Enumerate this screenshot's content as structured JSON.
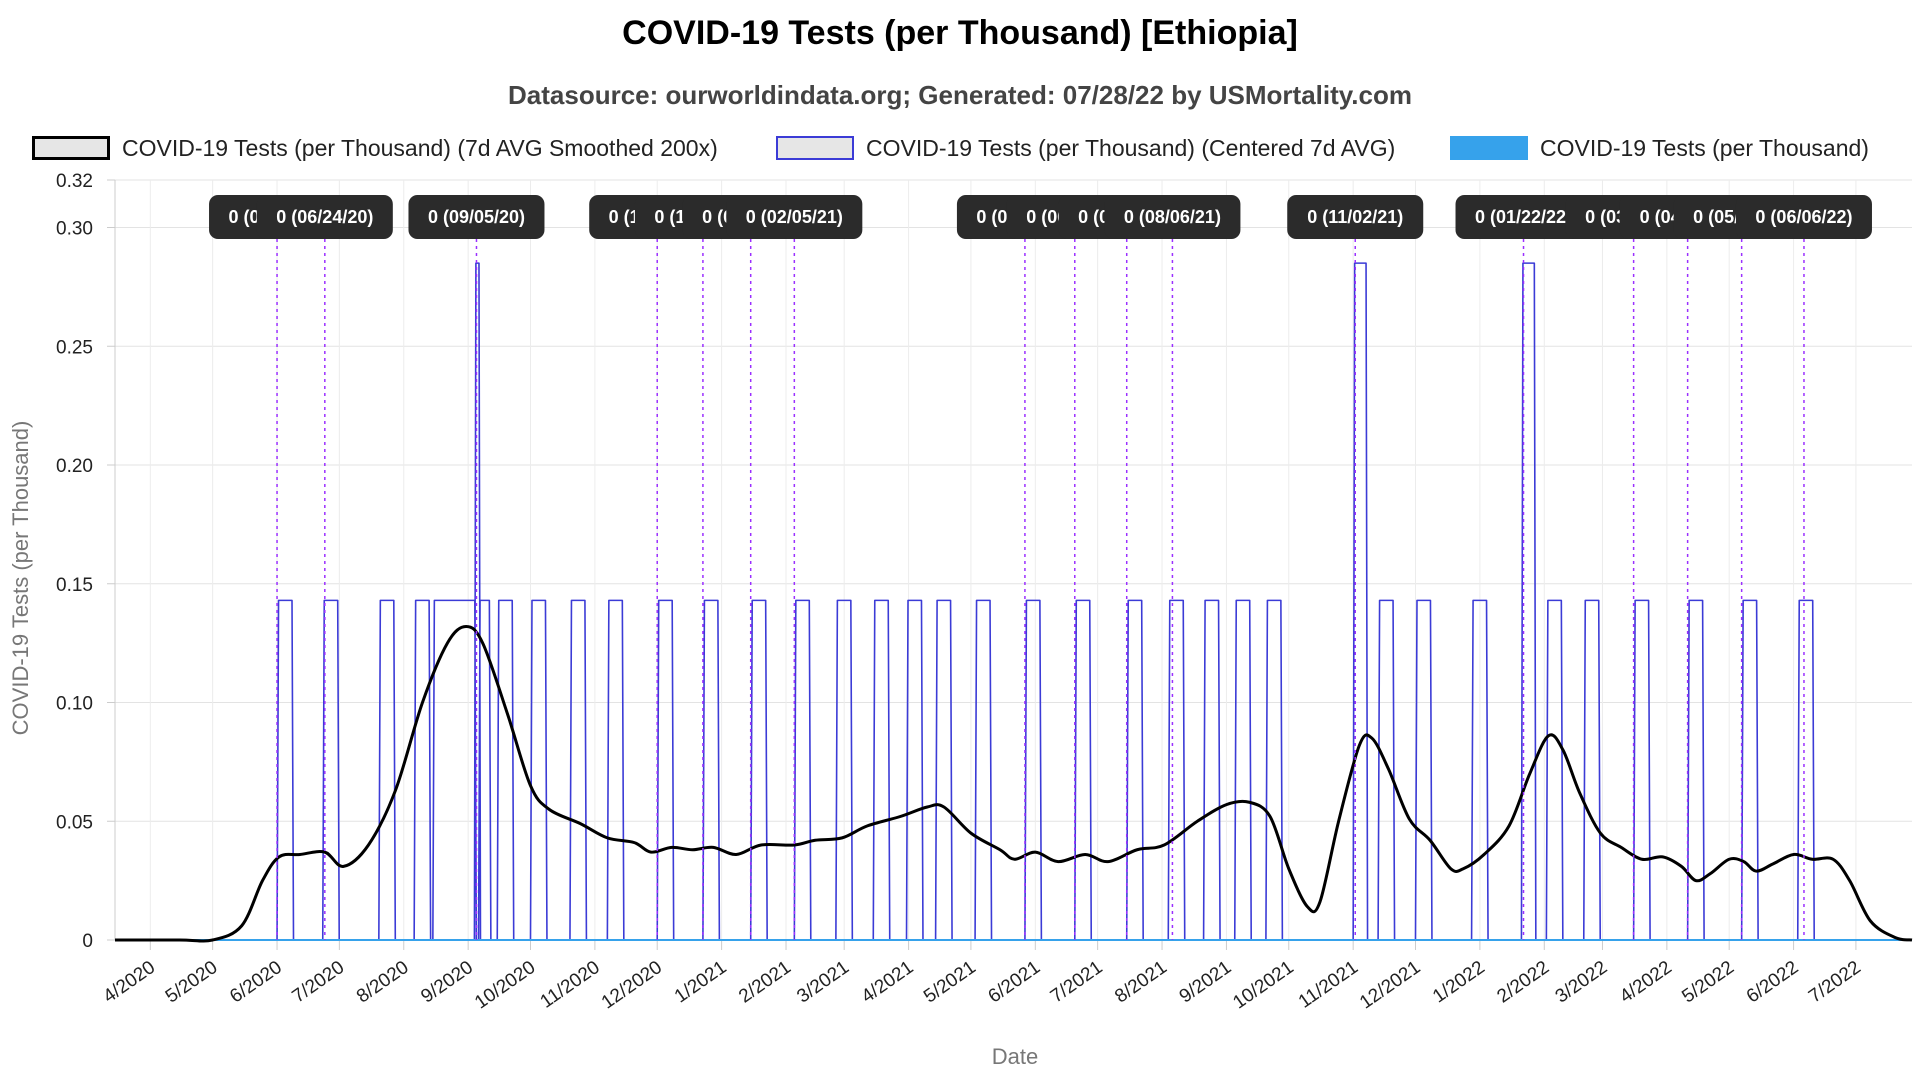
{
  "chart_data": {
    "type": "line",
    "title": "COVID-19 Tests (per Thousand) [Ethiopia]",
    "subtitle": "Datasource: ourworldindata.org; Generated: 07/28/22 by USMortality.com",
    "xlabel": "Date",
    "ylabel": "COVID-19 Tests (per Thousand)",
    "ylim": [
      0,
      0.32
    ],
    "y_ticks": [
      "0",
      "0.05",
      "0.10",
      "0.15",
      "0.20",
      "0.25",
      "0.30",
      "0.32"
    ],
    "x_ticks": [
      "4/2020",
      "5/2020",
      "6/2020",
      "7/2020",
      "8/2020",
      "9/2020",
      "10/2020",
      "11/2020",
      "12/2020",
      "1/2021",
      "2/2021",
      "3/2021",
      "4/2021",
      "5/2021",
      "6/2021",
      "7/2021",
      "8/2021",
      "9/2021",
      "10/2021",
      "11/2021",
      "12/2021",
      "1/2022",
      "2/2022",
      "3/2022",
      "4/2022",
      "5/2022",
      "6/2022",
      "7/2022"
    ],
    "grid": true,
    "legend_position": "top",
    "legend": [
      {
        "label": "COVID-19 Tests (per Thousand) (7d AVG Smoothed 200x)",
        "style": "box",
        "color": "#000000",
        "fill": "#e6e6e6"
      },
      {
        "label": "COVID-19 Tests (per Thousand) (Centered 7d AVG)",
        "style": "box",
        "color": "#3b3bd6",
        "fill": "#e6e6e6"
      },
      {
        "label": "COVID-19 Tests (per Thousand)",
        "style": "solid",
        "color": "#36a2eb"
      }
    ],
    "series": [
      {
        "name": "COVID-19 Tests (per Thousand) (7d AVG Smoothed 200x)",
        "color": "#000000",
        "points": [
          [
            "2020-03-15",
            0
          ],
          [
            "2020-04-15",
            0
          ],
          [
            "2020-05-01",
            0
          ],
          [
            "2020-05-15",
            0.006
          ],
          [
            "2020-05-25",
            0.025
          ],
          [
            "2020-06-02",
            0.035
          ],
          [
            "2020-06-12",
            0.036
          ],
          [
            "2020-06-24",
            0.037
          ],
          [
            "2020-07-03",
            0.031
          ],
          [
            "2020-07-15",
            0.04
          ],
          [
            "2020-07-28",
            0.063
          ],
          [
            "2020-08-10",
            0.1
          ],
          [
            "2020-08-22",
            0.125
          ],
          [
            "2020-08-31",
            0.132
          ],
          [
            "2020-09-08",
            0.125
          ],
          [
            "2020-09-20",
            0.095
          ],
          [
            "2020-10-01",
            0.065
          ],
          [
            "2020-10-10",
            0.055
          ],
          [
            "2020-10-25",
            0.049
          ],
          [
            "2020-11-07",
            0.043
          ],
          [
            "2020-11-20",
            0.041
          ],
          [
            "2020-11-28",
            0.037
          ],
          [
            "2020-12-08",
            0.039
          ],
          [
            "2020-12-18",
            0.038
          ],
          [
            "2020-12-28",
            0.039
          ],
          [
            "2021-01-08",
            0.036
          ],
          [
            "2021-01-20",
            0.04
          ],
          [
            "2021-02-05",
            0.04
          ],
          [
            "2021-02-15",
            0.042
          ],
          [
            "2021-02-28",
            0.043
          ],
          [
            "2021-03-12",
            0.048
          ],
          [
            "2021-03-28",
            0.052
          ],
          [
            "2021-04-10",
            0.056
          ],
          [
            "2021-04-18",
            0.056
          ],
          [
            "2021-05-01",
            0.045
          ],
          [
            "2021-05-15",
            0.038
          ],
          [
            "2021-05-22",
            0.034
          ],
          [
            "2021-06-01",
            0.037
          ],
          [
            "2021-06-12",
            0.033
          ],
          [
            "2021-06-25",
            0.036
          ],
          [
            "2021-07-06",
            0.033
          ],
          [
            "2021-07-20",
            0.038
          ],
          [
            "2021-08-02",
            0.04
          ],
          [
            "2021-08-18",
            0.05
          ],
          [
            "2021-09-01",
            0.057
          ],
          [
            "2021-09-12",
            0.058
          ],
          [
            "2021-09-22",
            0.052
          ],
          [
            "2021-10-01",
            0.03
          ],
          [
            "2021-10-10",
            0.014
          ],
          [
            "2021-10-16",
            0.016
          ],
          [
            "2021-10-25",
            0.05
          ],
          [
            "2021-11-04",
            0.082
          ],
          [
            "2021-11-10",
            0.085
          ],
          [
            "2021-11-18",
            0.072
          ],
          [
            "2021-11-28",
            0.051
          ],
          [
            "2021-12-08",
            0.042
          ],
          [
            "2021-12-18",
            0.03
          ],
          [
            "2021-12-24",
            0.03
          ],
          [
            "2022-01-03",
            0.036
          ],
          [
            "2022-01-15",
            0.048
          ],
          [
            "2022-01-25",
            0.07
          ],
          [
            "2022-02-03",
            0.086
          ],
          [
            "2022-02-10",
            0.08
          ],
          [
            "2022-02-18",
            0.062
          ],
          [
            "2022-02-28",
            0.045
          ],
          [
            "2022-03-10",
            0.039
          ],
          [
            "2022-03-20",
            0.034
          ],
          [
            "2022-03-30",
            0.035
          ],
          [
            "2022-04-08",
            0.031
          ],
          [
            "2022-04-15",
            0.025
          ],
          [
            "2022-04-22",
            0.028
          ],
          [
            "2022-05-01",
            0.034
          ],
          [
            "2022-05-08",
            0.033
          ],
          [
            "2022-05-14",
            0.029
          ],
          [
            "2022-05-22",
            0.032
          ],
          [
            "2022-06-01",
            0.036
          ],
          [
            "2022-06-10",
            0.034
          ],
          [
            "2022-06-20",
            0.034
          ],
          [
            "2022-06-28",
            0.025
          ],
          [
            "2022-07-08",
            0.008
          ],
          [
            "2022-07-20",
            0.001
          ],
          [
            "2022-07-28",
            0
          ]
        ]
      },
      {
        "name": "COVID-19 Tests (per Thousand) (Centered 7d AVG)",
        "color": "#3b3bd6",
        "baseline": 0,
        "pulses": [
          [
            "2020-06-01",
            "2020-06-07",
            0.143
          ],
          [
            "2020-06-23",
            "2020-06-29",
            0.143
          ],
          [
            "2020-07-20",
            "2020-07-26",
            0.143
          ],
          [
            "2020-08-06",
            "2020-08-12",
            0.143
          ],
          [
            "2020-08-15",
            "2020-09-03",
            0.143
          ],
          [
            "2020-09-04",
            "2020-09-05",
            0.285
          ],
          [
            "2020-09-06",
            "2020-09-10",
            0.143
          ],
          [
            "2020-09-15",
            "2020-09-21",
            0.143
          ],
          [
            "2020-10-01",
            "2020-10-07",
            0.143
          ],
          [
            "2020-10-20",
            "2020-10-26",
            0.143
          ],
          [
            "2020-11-07",
            "2020-11-13",
            0.143
          ],
          [
            "2020-12-01",
            "2020-12-07",
            0.143
          ],
          [
            "2020-12-23",
            "2020-12-29",
            0.143
          ],
          [
            "2021-01-15",
            "2021-01-21",
            0.143
          ],
          [
            "2021-02-05",
            "2021-02-11",
            0.143
          ],
          [
            "2021-02-25",
            "2021-03-03",
            0.143
          ],
          [
            "2021-03-15",
            "2021-03-21",
            0.143
          ],
          [
            "2021-03-31",
            "2021-04-06",
            0.143
          ],
          [
            "2021-04-14",
            "2021-04-20",
            0.143
          ],
          [
            "2021-05-03",
            "2021-05-09",
            0.143
          ],
          [
            "2021-05-27",
            "2021-06-02",
            0.143
          ],
          [
            "2021-06-20",
            "2021-06-26",
            0.143
          ],
          [
            "2021-07-15",
            "2021-07-21",
            0.143
          ],
          [
            "2021-08-04",
            "2021-08-10",
            0.143
          ],
          [
            "2021-08-21",
            "2021-08-27",
            0.143
          ],
          [
            "2021-09-05",
            "2021-09-11",
            0.143
          ],
          [
            "2021-09-20",
            "2021-09-26",
            0.143
          ],
          [
            "2021-11-01",
            "2021-11-06",
            0.285
          ],
          [
            "2021-11-13",
            "2021-11-19",
            0.143
          ],
          [
            "2021-12-01",
            "2021-12-07",
            0.143
          ],
          [
            "2021-12-28",
            "2022-01-03",
            0.143
          ],
          [
            "2022-01-21",
            "2022-01-26",
            0.285
          ],
          [
            "2022-02-02",
            "2022-02-08",
            0.143
          ],
          [
            "2022-02-20",
            "2022-02-26",
            0.143
          ],
          [
            "2022-03-16",
            "2022-03-22",
            0.143
          ],
          [
            "2022-04-11",
            "2022-04-17",
            0.143
          ],
          [
            "2022-05-07",
            "2022-05-13",
            0.143
          ],
          [
            "2022-06-03",
            "2022-06-09",
            0.143
          ]
        ]
      },
      {
        "name": "COVID-19 Tests (per Thousand)",
        "color": "#36a2eb",
        "points": [
          [
            "2020-03-15",
            0
          ],
          [
            "2022-07-28",
            0
          ]
        ]
      }
    ],
    "annotations": [
      {
        "date": "2020-06-01",
        "text": "0 (06/01/20)"
      },
      {
        "date": "2020-06-24",
        "text": "0 (06/24/20)"
      },
      {
        "date": "2020-09-05",
        "text": "0 (09/05/20)"
      },
      {
        "date": "2020-12-01",
        "text": "0 (12/01/20)"
      },
      {
        "date": "2020-12-23",
        "text": "0 (12/23/20)"
      },
      {
        "date": "2021-01-15",
        "text": "0 (01/15/21)"
      },
      {
        "date": "2021-02-05",
        "text": "0 (02/05/21)"
      },
      {
        "date": "2021-05-27",
        "text": "0 (05/27/21)"
      },
      {
        "date": "2021-06-20",
        "text": "0 (06/20/21)"
      },
      {
        "date": "2021-07-15",
        "text": "0 (07/15/21)"
      },
      {
        "date": "2021-08-06",
        "text": "0 (08/06/21)"
      },
      {
        "date": "2021-11-02",
        "text": "0 (11/02/21)"
      },
      {
        "date": "2022-01-22",
        "text": "0 (01/22/22)"
      },
      {
        "date": "2022-03-16",
        "text": "0 (03/16/22)"
      },
      {
        "date": "2022-04-11",
        "text": "0 (04/11/22)"
      },
      {
        "date": "2022-05-07",
        "text": "0 (05/07/22)"
      },
      {
        "date": "2022-06-06",
        "text": "0 (06/06/22)"
      }
    ]
  }
}
